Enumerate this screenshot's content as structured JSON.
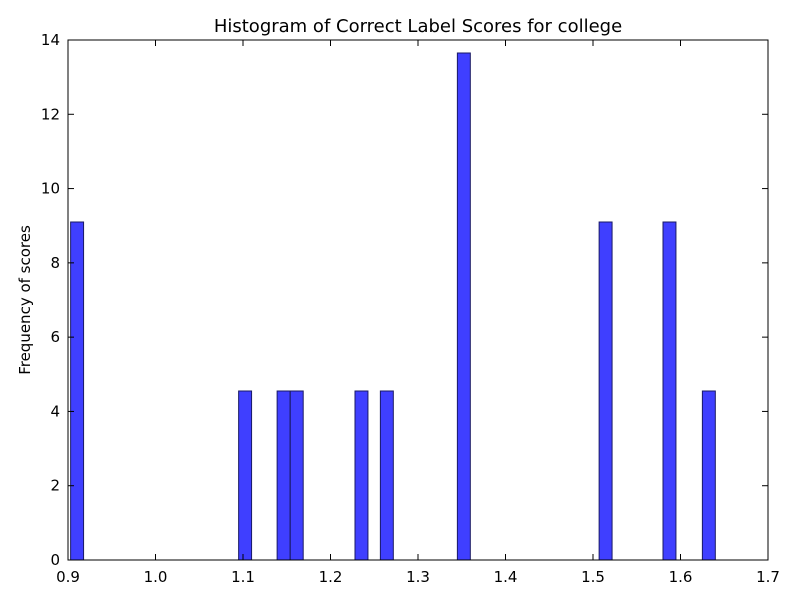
{
  "chart_data": {
    "type": "bar",
    "title": "Histogram of Correct Label Scores for college",
    "xlabel": "",
    "ylabel": "Frequency of scores",
    "xlim": [
      0.9,
      1.7
    ],
    "ylim": [
      0,
      14
    ],
    "x_ticks": [
      "0.9",
      "1.0",
      "1.1",
      "1.2",
      "1.3",
      "1.4",
      "1.5",
      "1.6",
      "1.7"
    ],
    "y_ticks": [
      "0",
      "2",
      "4",
      "6",
      "8",
      "10",
      "12",
      "14"
    ],
    "bin_width": 0.0148,
    "bars": [
      {
        "x": 0.903,
        "value": 9.1
      },
      {
        "x": 1.095,
        "value": 4.55
      },
      {
        "x": 1.139,
        "value": 4.55
      },
      {
        "x": 1.154,
        "value": 4.55
      },
      {
        "x": 1.228,
        "value": 4.55
      },
      {
        "x": 1.257,
        "value": 4.55
      },
      {
        "x": 1.345,
        "value": 13.65
      },
      {
        "x": 1.507,
        "value": 9.1
      },
      {
        "x": 1.58,
        "value": 9.1
      },
      {
        "x": 1.625,
        "value": 4.55
      }
    ],
    "grid": false,
    "bar_color": "#3f3fff"
  }
}
